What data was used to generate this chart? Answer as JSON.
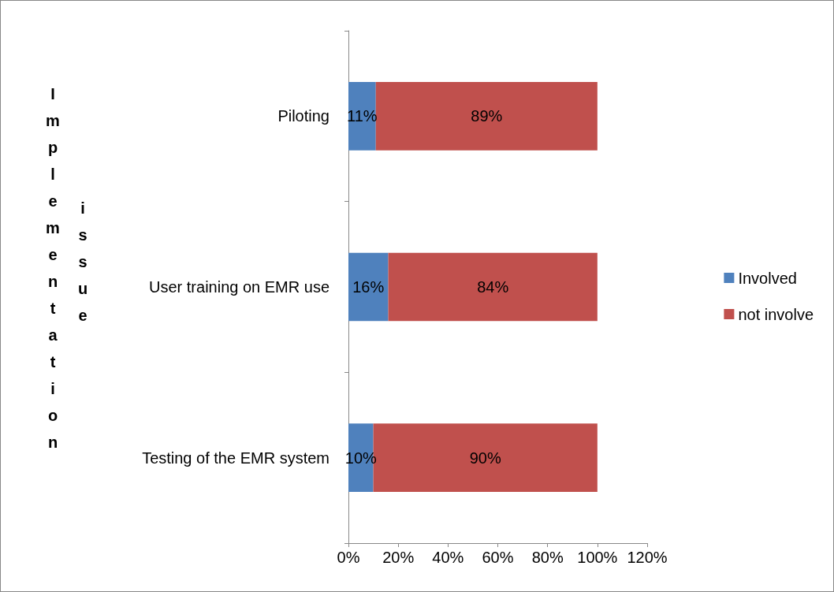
{
  "chart_data": {
    "type": "bar",
    "orientation": "horizontal",
    "stacked": true,
    "ylabel": "Implementation issue",
    "categories": [
      "Piloting",
      "User training on EMR use",
      "Testing of the EMR system"
    ],
    "series": [
      {
        "name": "Involved",
        "color": "#4f81bd",
        "values": [
          11,
          16,
          10
        ],
        "value_labels": [
          "11%",
          "16%",
          "10%"
        ]
      },
      {
        "name": "not involve",
        "color": "#c0504d",
        "values": [
          89,
          84,
          90
        ],
        "value_labels": [
          "89%",
          "84%",
          "90%"
        ]
      }
    ],
    "xlim": [
      0,
      120
    ],
    "xticks": [
      {
        "value": 0,
        "label": "0%"
      },
      {
        "value": 20,
        "label": "20%"
      },
      {
        "value": 40,
        "label": "40%"
      },
      {
        "value": 60,
        "label": "60%"
      },
      {
        "value": 80,
        "label": "80%"
      },
      {
        "value": 100,
        "label": "100%"
      },
      {
        "value": 120,
        "label": "120%"
      }
    ],
    "grid": false,
    "legend": "right"
  }
}
